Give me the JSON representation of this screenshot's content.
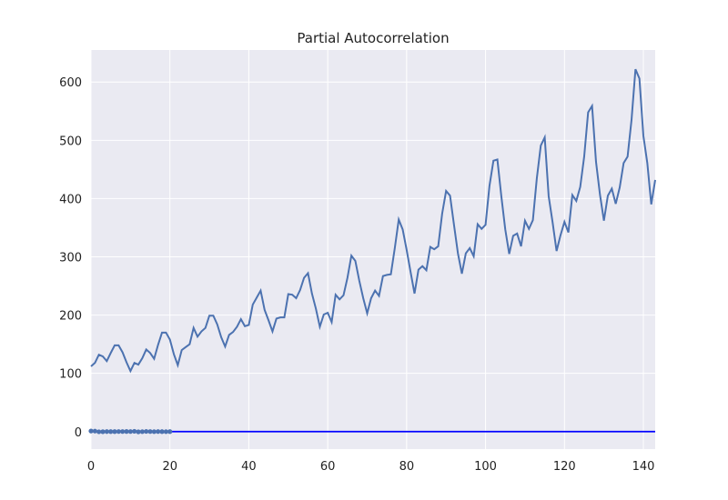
{
  "chart_data": {
    "type": "line",
    "title": "Partial Autocorrelation",
    "xlabel": "",
    "ylabel": "",
    "xlim": [
      0,
      143
    ],
    "ylim": [
      -30,
      655
    ],
    "grid": true,
    "xticks": [
      0,
      20,
      40,
      60,
      80,
      100,
      120,
      140
    ],
    "yticks": [
      0,
      100,
      200,
      300,
      400,
      500,
      600
    ],
    "colors": {
      "series": "#4c72b0",
      "pacf": "#4c72b0",
      "baseline": "#0000ff",
      "background": "#eaeaf2"
    },
    "series": [
      {
        "values": [
          112,
          118,
          132,
          129,
          121,
          135,
          148,
          148,
          136,
          119,
          104,
          118,
          115,
          126,
          141,
          135,
          125,
          149,
          170,
          170,
          158,
          133,
          114,
          140,
          145,
          150,
          178,
          163,
          172,
          178,
          199,
          199,
          184,
          162,
          146,
          166,
          171,
          180,
          193,
          181,
          183,
          218,
          230,
          242,
          209,
          191,
          172,
          194,
          196,
          196,
          236,
          235,
          229,
          243,
          264,
          272,
          237,
          211,
          180,
          201,
          204,
          188,
          235,
          227,
          234,
          264,
          302,
          293,
          259,
          229,
          203,
          229,
          242,
          233,
          267,
          269,
          270,
          315,
          364,
          347,
          312,
          274,
          237,
          278,
          284,
          277,
          317,
          313,
          318,
          374,
          413,
          405,
          355,
          306,
          271,
          306,
          315,
          301,
          356,
          348,
          355,
          422,
          465,
          467,
          404,
          347,
          305,
          336,
          340,
          318,
          362,
          348,
          363,
          435,
          491,
          505,
          404,
          359,
          310,
          337,
          360,
          342,
          406,
          396,
          420,
          472,
          548,
          559,
          463,
          407,
          362,
          405,
          417,
          391,
          419,
          461,
          472,
          535,
          622,
          606,
          508,
          461,
          390,
          432
        ]
      },
      {
        "values": [
          1.0,
          0.95,
          -0.23,
          -0.12,
          0.09,
          0.05,
          0.03,
          0.11,
          0.17,
          0.24,
          0.11,
          0.52,
          -0.33,
          -0.06,
          0.31,
          0.11,
          -0.08,
          0.14,
          -0.02,
          -0.06,
          0.03
        ]
      }
    ],
    "baseline": 0
  }
}
